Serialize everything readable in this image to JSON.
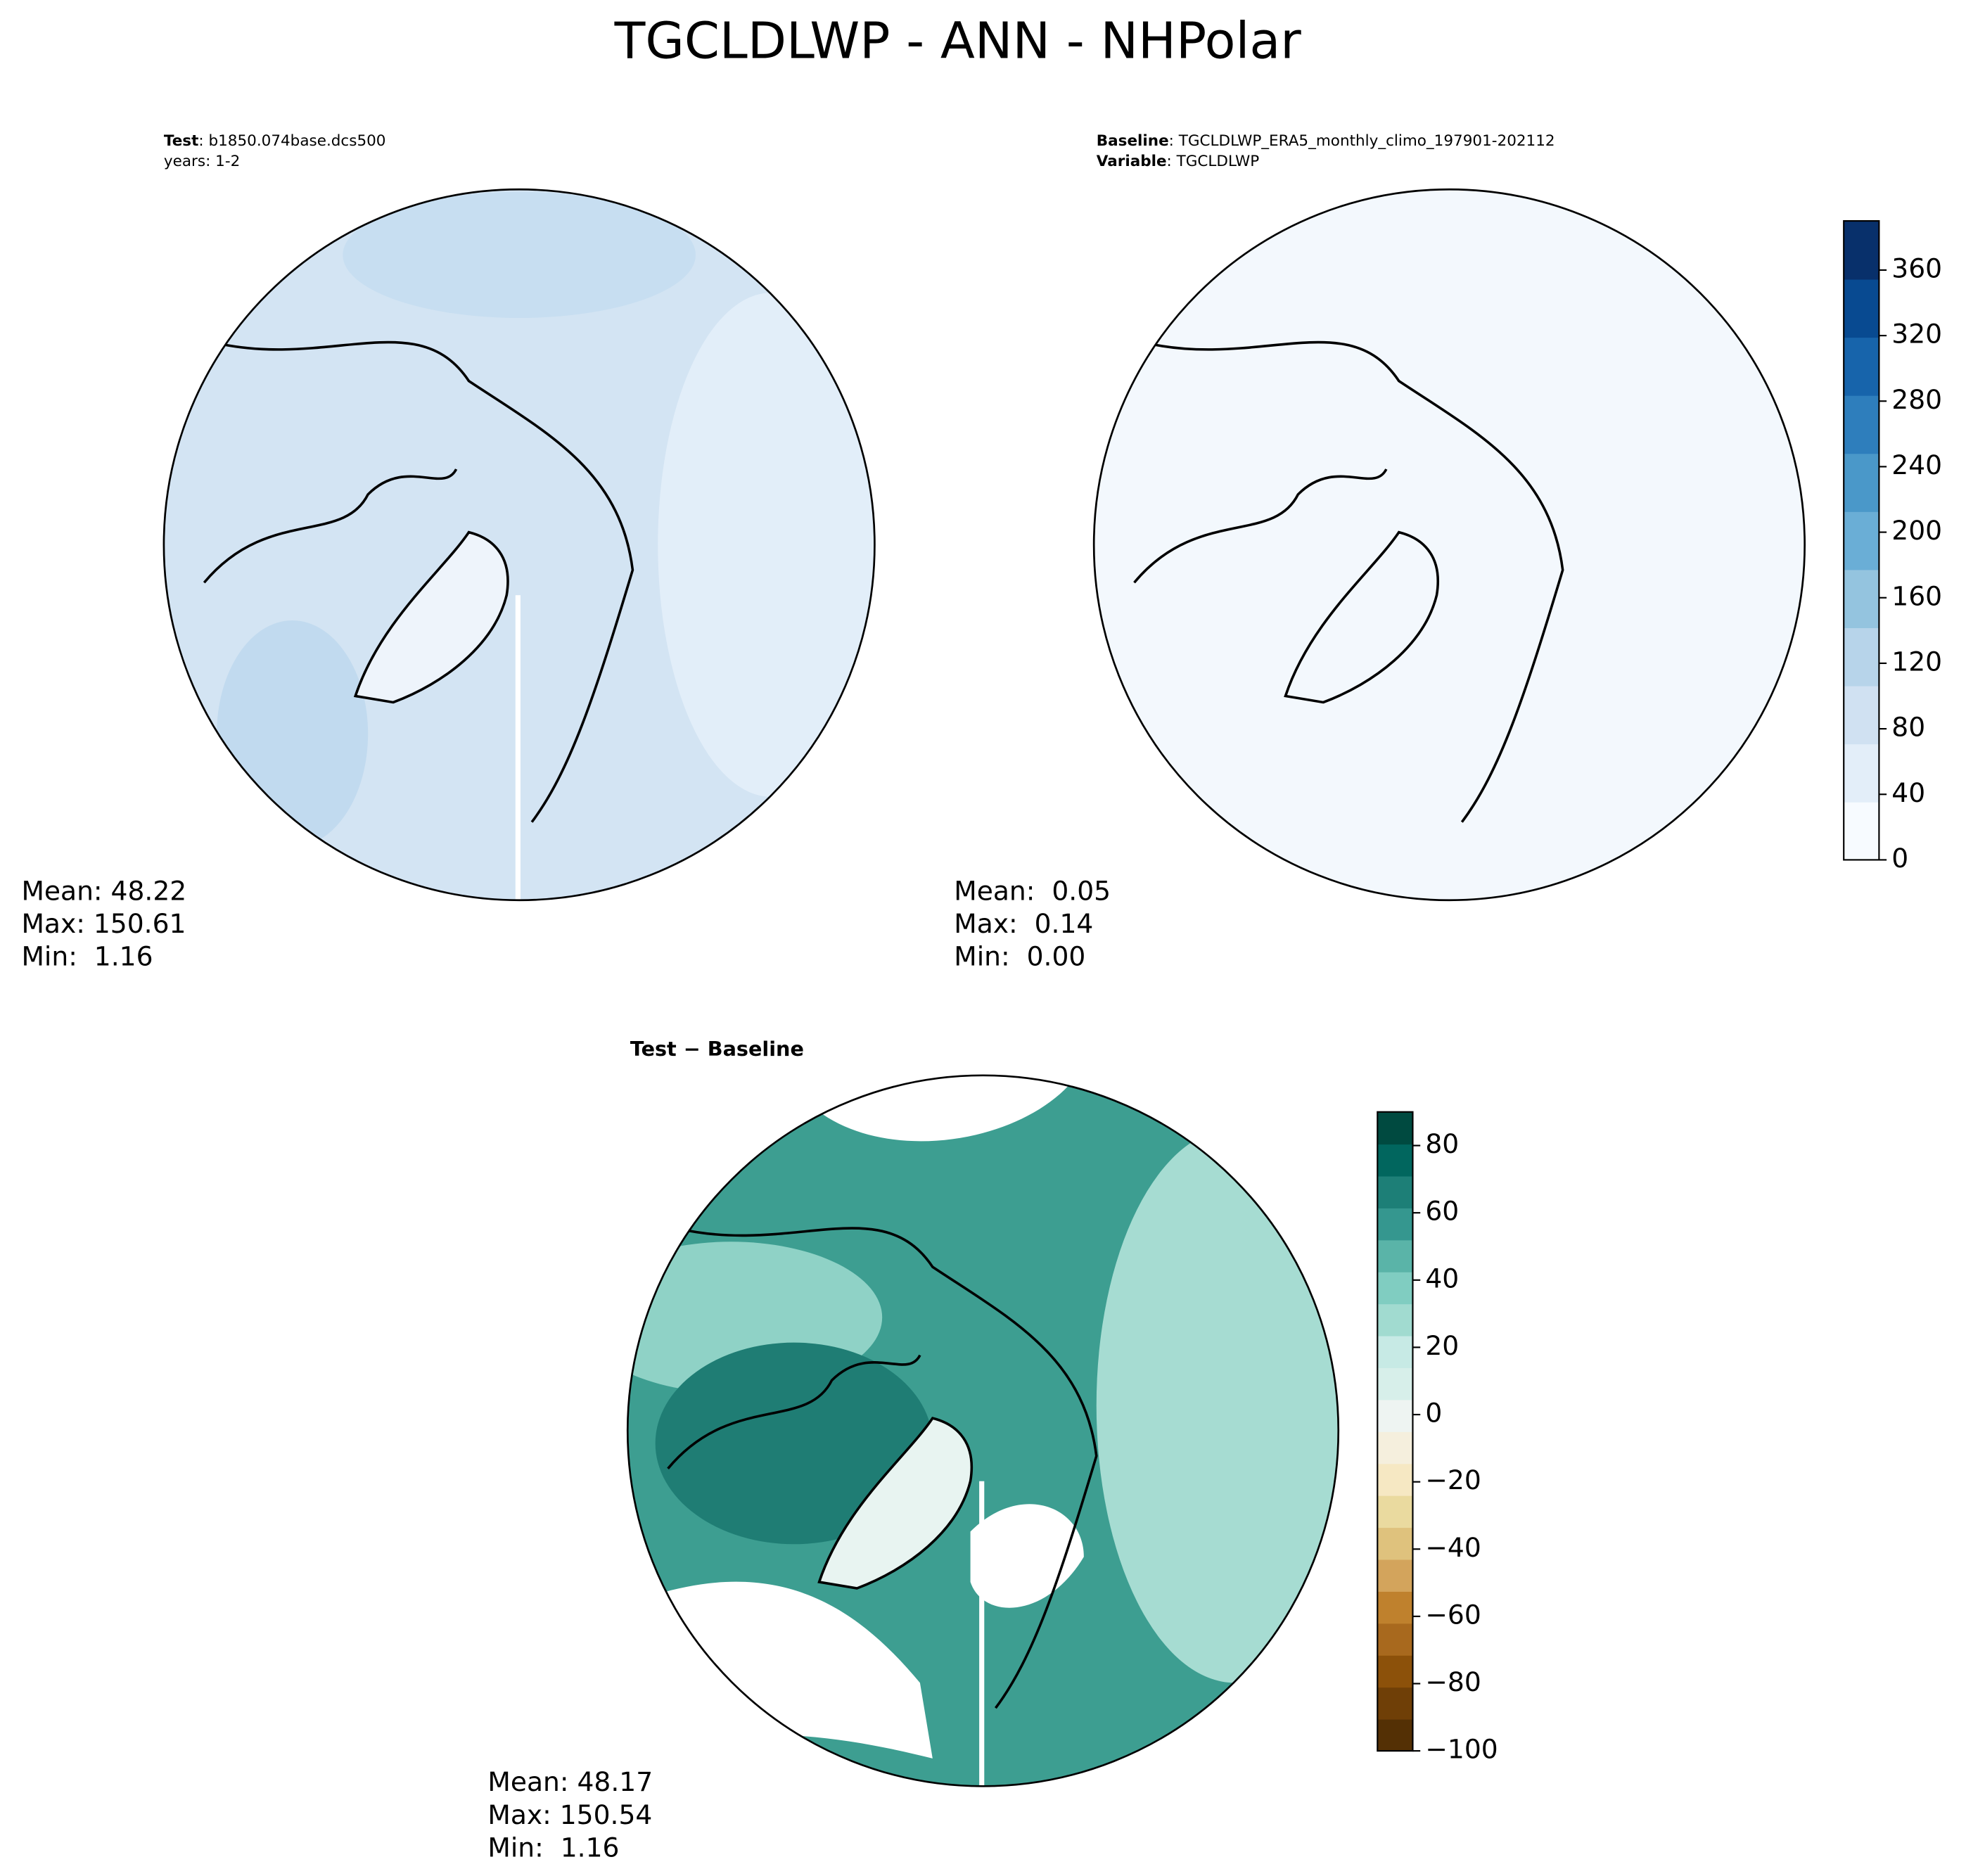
{
  "title": "TGCLDLWP - ANN - NHPolar",
  "chart_data": [
    {
      "type": "map",
      "header": [
        {
          "key": "Test",
          "text": ": b1850.074base.dcs500"
        },
        {
          "text": "years: 1-2"
        }
      ],
      "stats": [
        "Mean: 48.22",
        "Max: 150.61",
        "Min:  1.16"
      ],
      "map_color": "#d3e4f3"
    },
    {
      "type": "map",
      "header": [
        {
          "key": "Baseline",
          "text": ": TGCLDLWP_ERA5_monthly_climo_197901-202112"
        },
        {
          "key": "Variable",
          "text": ": TGCLDLWP"
        }
      ],
      "stats": [
        "Mean:  0.05",
        "Max:  0.14",
        "Min:  0.00"
      ],
      "map_color": "#f3f8fd",
      "colorbar": {
        "ylim": [
          0,
          390
        ],
        "yticks": [
          0,
          40,
          80,
          120,
          160,
          200,
          240,
          280,
          320,
          360
        ],
        "colors": [
          "#f7fbff",
          "#e3eef9",
          "#d0e1f2",
          "#b7d4ea",
          "#94c4df",
          "#6aaed6",
          "#4a98c9",
          "#2e7ebc",
          "#1764ab",
          "#084a91",
          "#08306b"
        ]
      }
    },
    {
      "type": "map",
      "header": [
        {
          "key": "Test − Baseline"
        }
      ],
      "stats": [
        "Mean: 48.17",
        "Max: 150.54",
        "Min:  1.16"
      ],
      "map_color": "#3d9e91",
      "colorbar": {
        "ylim": [
          -100,
          90
        ],
        "yticks": [
          {
            "value": -100,
            "label": "−100"
          },
          {
            "value": -80,
            "label": "−80"
          },
          {
            "value": -60,
            "label": "−60"
          },
          {
            "value": -40,
            "label": "−40"
          },
          {
            "value": -20,
            "label": "−20"
          },
          0,
          20,
          40,
          60,
          80
        ],
        "colors": [
          "#543005",
          "#6f3f07",
          "#8c510a",
          "#a8691e",
          "#bf812d",
          "#d3a45c",
          "#dfc27d",
          "#eada9f",
          "#f6e8c3",
          "#f5efdd",
          "#eef4f2",
          "#d7efea",
          "#c7eae5",
          "#a1dbd0",
          "#80cdc1",
          "#5ab4a8",
          "#35978f",
          "#1d7f77",
          "#01665e",
          "#004a40"
        ]
      }
    }
  ]
}
